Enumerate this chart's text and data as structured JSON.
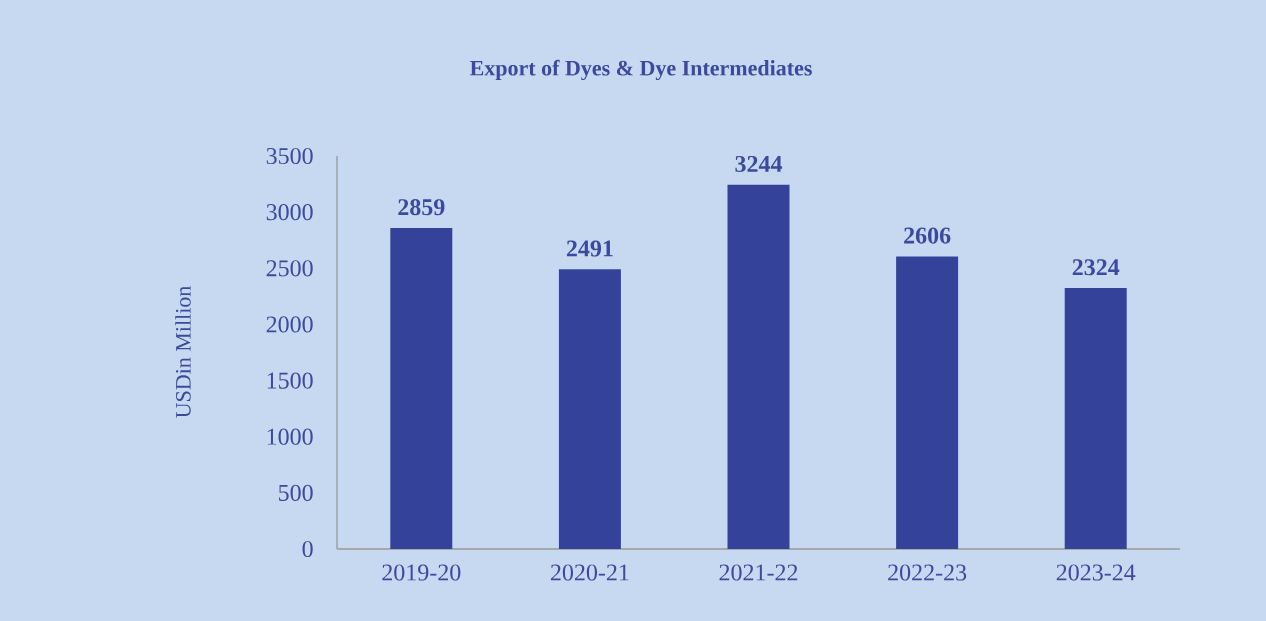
{
  "chart_data": {
    "type": "bar",
    "title": "Export of Dyes & Dye Intermediates",
    "ylabel": "USDin Million",
    "categories": [
      "2019-20",
      "2020-21",
      "2021-22",
      "2022-23",
      "2023-24"
    ],
    "values": [
      2859,
      2491,
      3244,
      2606,
      2324
    ],
    "color": "#344399",
    "ylim": [
      0,
      3500
    ],
    "yticks": [
      0,
      500,
      1000,
      1500,
      2000,
      2500,
      3000,
      3500
    ],
    "data_labels": true
  }
}
